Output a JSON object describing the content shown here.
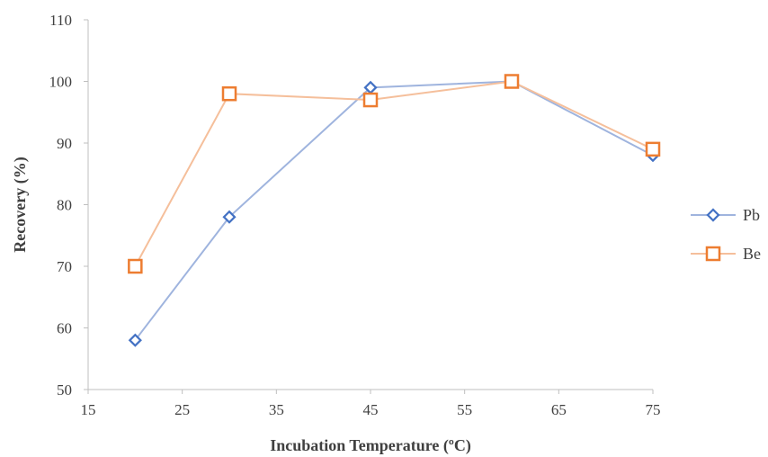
{
  "chart_data": {
    "type": "line",
    "title": "",
    "xlabel": "Incubation Temperature (ºC)",
    "ylabel": "Recovery (%)",
    "xlim": [
      15,
      75
    ],
    "ylim": [
      50,
      110
    ],
    "xticks": [
      15,
      25,
      35,
      45,
      55,
      65,
      75
    ],
    "yticks": [
      50,
      60,
      70,
      80,
      90,
      100,
      110
    ],
    "grid": false,
    "legend_position": "right",
    "series": [
      {
        "name": "Pb",
        "marker": "diamond",
        "marker_color": "#4472c4",
        "line_color": "#9fb4de",
        "x": [
          20,
          30,
          45,
          60,
          75
        ],
        "y": [
          58,
          78,
          99,
          100,
          88
        ]
      },
      {
        "name": "Be",
        "marker": "square",
        "marker_color": "#ed7d31",
        "line_color": "#f5bf9b",
        "x": [
          20,
          30,
          45,
          60,
          75
        ],
        "y": [
          70,
          98,
          97,
          100,
          89
        ]
      }
    ]
  }
}
